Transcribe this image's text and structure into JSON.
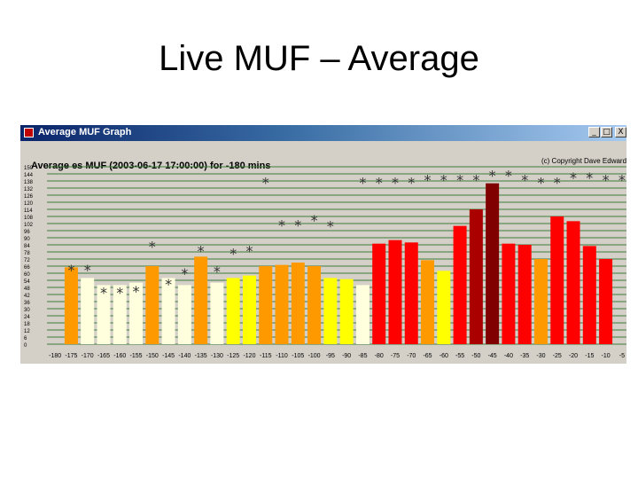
{
  "slide": {
    "title": "Live MUF – Average"
  },
  "window": {
    "title": "Average MUF Graph",
    "buttons": {
      "minimize": "_",
      "maximize": "□",
      "close": "X"
    }
  },
  "chart": {
    "header": "Average es MUF (2003-06-17 17:00:00) for -180 mins",
    "copyright": "(c) Copyright Dave Edwards"
  },
  "chart_data": {
    "type": "bar",
    "title": "Average es MUF (2003-06-17 17:00:00) for -180 mins",
    "xlabel": "",
    "ylabel": "",
    "ylim": [
      0,
      150
    ],
    "grid": true,
    "legend": "none",
    "y_ticks": [
      150,
      144,
      138,
      132,
      126,
      120,
      114,
      108,
      102,
      96,
      90,
      84,
      78,
      72,
      66,
      60,
      54,
      48,
      42,
      36,
      30,
      24,
      18,
      12,
      6,
      0
    ],
    "y_tick_labels": [
      "150",
      "144",
      "138",
      "132",
      "126",
      "120",
      "114",
      "108",
      "102",
      "96",
      "90",
      "84",
      "78",
      "72",
      "66",
      "60",
      "54",
      "48",
      "42",
      "36",
      "30",
      "24",
      "18",
      "12",
      "6",
      "0"
    ],
    "x_tick_labels": [
      "-180",
      "-175",
      "-170",
      "-165",
      "-160",
      "-155",
      "-150",
      "-145",
      "-140",
      "-135",
      "-130",
      "-125",
      "-120",
      "-115",
      "-110",
      "-105",
      "-100",
      "-95",
      "-90",
      "-85",
      "-80",
      "-75",
      "-70",
      "-65",
      "-60",
      "-55",
      "-50",
      "-45",
      "-40",
      "-35",
      "-30",
      "-25",
      "-20",
      "-15",
      "-10",
      "-5"
    ],
    "categories": [
      -180,
      -175,
      -170,
      -165,
      -160,
      -155,
      -150,
      -145,
      -140,
      -135,
      -130,
      -125,
      -120,
      -115,
      -110,
      -105,
      -100,
      -95,
      -90,
      -85,
      -80,
      -75,
      -70,
      -65,
      -60,
      -55,
      -50,
      -45,
      -40,
      -35,
      -30,
      -25,
      -20,
      -15,
      -10,
      -5
    ],
    "values": [
      0,
      65,
      56,
      50,
      50,
      52,
      66,
      56,
      50,
      74,
      52,
      56,
      58,
      66,
      67,
      69,
      66,
      56,
      55,
      50,
      85,
      88,
      86,
      71,
      62,
      100,
      114,
      136,
      85,
      84,
      72,
      108,
      104,
      83,
      72,
      0
    ],
    "colors": [
      "",
      "#ff9900",
      "#ffffdd",
      "#ffffdd",
      "#ffffdd",
      "#ffffdd",
      "#ff9900",
      "#ffffdd",
      "#ffffdd",
      "#ff9900",
      "#ffffdd",
      "#ffff00",
      "#ffff00",
      "#ff9900",
      "#ff9900",
      "#ff9900",
      "#ff9900",
      "#ffff00",
      "#ffff00",
      "#ffffdd",
      "#ff0000",
      "#ff0000",
      "#ff0000",
      "#ff9900",
      "#ffff00",
      "#ff0000",
      "#aa0000",
      "#800000",
      "#ff0000",
      "#ff0000",
      "#ff9900",
      "#ff0000",
      "#ff0000",
      "#ff0000",
      "#ff0000",
      ""
    ],
    "star_values": [
      0,
      66,
      66,
      47,
      47,
      48,
      86,
      54,
      63,
      82,
      65,
      80,
      82,
      140,
      104,
      104,
      108,
      103,
      140,
      140,
      140,
      140,
      140,
      142,
      142,
      142,
      142,
      146,
      146,
      142,
      140,
      140,
      144,
      144,
      142,
      142
    ],
    "star_visible": [
      false,
      true,
      true,
      true,
      true,
      true,
      true,
      true,
      true,
      true,
      true,
      true,
      true,
      true,
      true,
      true,
      true,
      true,
      false,
      true,
      true,
      true,
      true,
      true,
      true,
      true,
      true,
      true,
      true,
      true,
      true,
      true,
      true,
      true,
      true,
      true
    ],
    "star_symbol": "*",
    "colors_meta": {
      "background": "#d4d0c8",
      "gridline": "#3a7d3a",
      "star": "#333333"
    }
  }
}
